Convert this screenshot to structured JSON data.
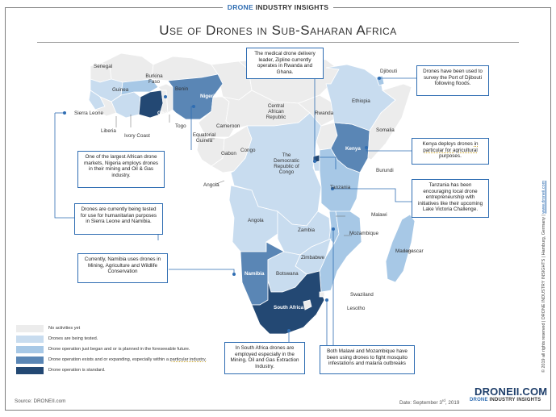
{
  "header": {
    "brand_drone": "DRONE",
    "brand_rest": " INDUSTRY INSIGHTS",
    "title": "Use of Drones in Sub-Saharan Africa"
  },
  "colors": {
    "none": "#ececec",
    "tested": "#c8dcef",
    "planned": "#a7c8e6",
    "expanding": "#5a86b5",
    "standard": "#234873",
    "accent": "#2f6db2",
    "underline": "#c9a227"
  },
  "countries": {
    "senegal": "Senegal",
    "guinea": "Guinea",
    "burkina_faso": "Burkina\nFaso",
    "benin": "Benin",
    "nigeria": "Nigeria",
    "ghana": "Ghana",
    "sierra_leone": "Sierra Leone",
    "liberia": "Liberia",
    "ivory_coast": "Ivory Coast",
    "togo": "Togo",
    "equatorial_guinea": "Equatorial\nGuinea",
    "gabon": "Gabon",
    "cameroon": "Cameroon",
    "car": "Central\nAfrican\nRepublic",
    "congo": "Congo",
    "drc": "The\nDemocratic\nRepublic of\nCongo",
    "angola": "Angola",
    "rwanda": "Rwanda",
    "burundi": "Burundi",
    "djibouti": "Djibouti",
    "ethiopia": "Ethiopia",
    "somalia": "Somalia",
    "kenya": "Kenya",
    "tanzania": "Tanzania",
    "malawi": "Malawi",
    "zambia": "Zambia",
    "mozambique": "Mozambique",
    "madagascar": "Madagascar",
    "zimbabwe": "Zimbabwe",
    "namibia": "Namibia",
    "botswana": "Botswana",
    "swaziland": "Swaziland",
    "lesotho": "Lesotho",
    "south_africa": "South Africa"
  },
  "notes": {
    "zipline": "The medical drone delivery leader, Zipline currently operates in Rwanda and Ghana.",
    "djibouti": "Drones have been used to survey the Port of Djibouti following floods.",
    "nigeria": "One of the largest African drone markets, Nigeria employs drones in their mining and Oil & Gas industry.",
    "kenya_pre": "Kenya deploys drones ",
    "kenya_ul": "in particular for agricultural",
    "kenya_post": " purposes.",
    "tanzania": "Tanzania has been encouraging local drone entrepreneurship with initiatives like their upcoming Lake Victoria Challenge.",
    "humanitarian": "Drones are currently being tested for use for humanitarian purposes in Sierra Leone and Namibia.",
    "namibia": "Currently, Namibia uses drones in Mining, Agriculture and Wildlife Conservation",
    "south_africa": "In South Africa drones are employed especially in the Mining, Oil and Gas Extraction Industry.",
    "malawi_moz": "Both Malawi and Mozambique have been using drones to fight mosquito infestations and malaria outbreaks"
  },
  "legend": [
    {
      "label_pre": "No activities yet",
      "label_ul": "",
      "color": "#ececec"
    },
    {
      "label_pre": "Drones are being tested.",
      "label_ul": "",
      "color": "#c8dcef"
    },
    {
      "label_pre": "Drone operation just began and or is planned in the foreseeable future.",
      "label_ul": "",
      "color": "#a7c8e6"
    },
    {
      "label_pre": "Drone operation exists and or expanding, especially within a ",
      "label_ul": "particular industry.",
      "color": "#5a86b5"
    },
    {
      "label_pre": "Drone operation is standard.",
      "label_ul": "",
      "color": "#234873"
    }
  ],
  "footer": {
    "source": "Source: DRONEII.com",
    "date_pre": "Date: September 3",
    "date_sup": "rd",
    "date_post": ", 2019",
    "logo": "DRONEII.COM",
    "logo_sub_drone": "DRONE",
    "logo_sub_rest": " INDUSTRY INSIGHTS",
    "side_text": "© 2019 all rights reserved  |  DRONE INDUSTRY INSIGHTS  |  Hamburg, Germany  |  ",
    "side_link": "www.droneii.com"
  }
}
